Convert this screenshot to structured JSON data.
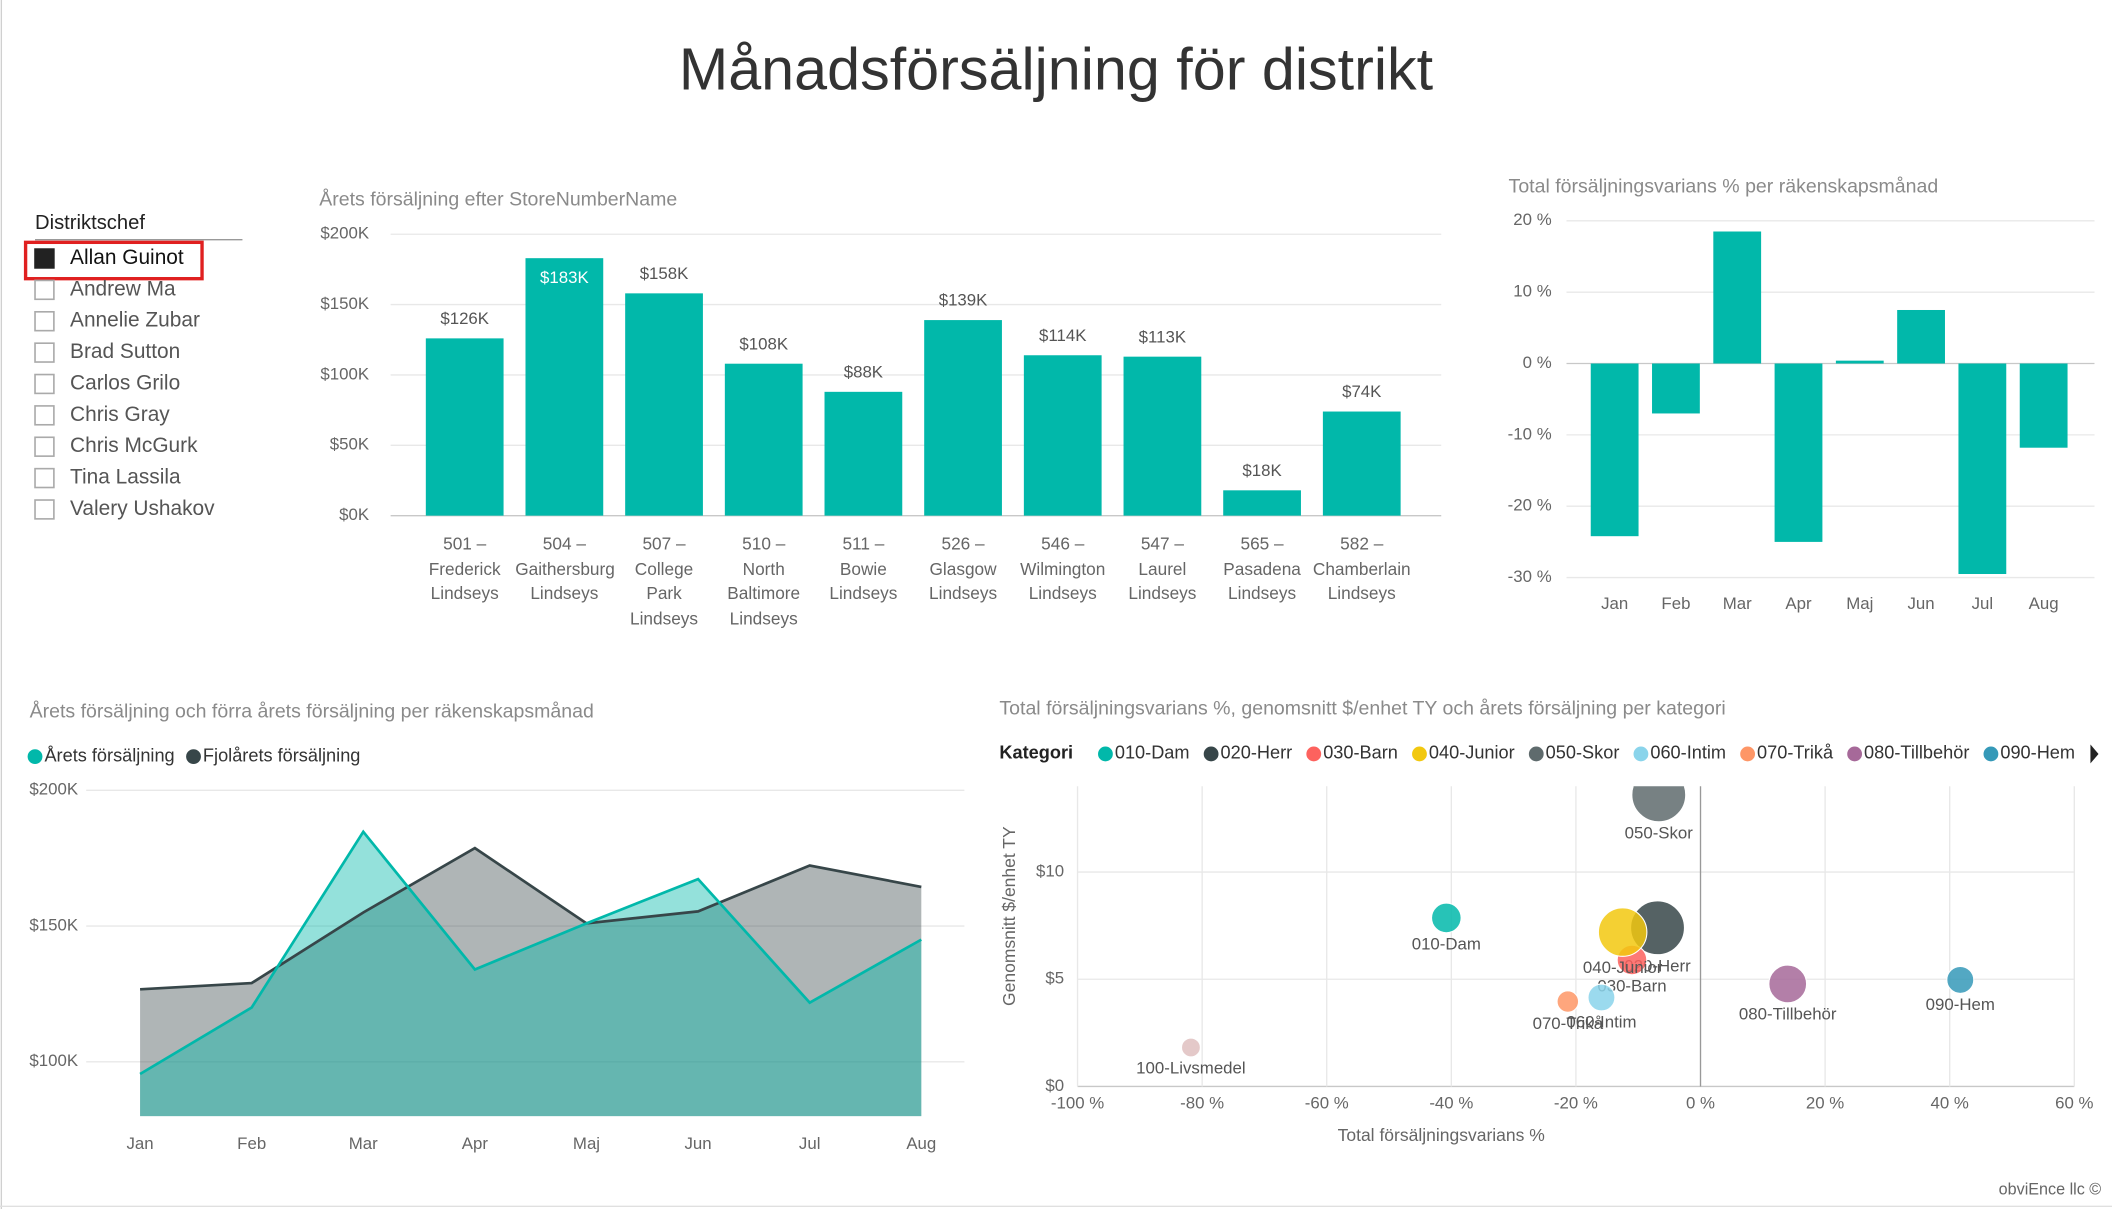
{
  "title": "Månadsförsäljning för distrikt",
  "slicer": {
    "title": "Distriktschef",
    "items": [
      {
        "label": "Allan Guinot",
        "checked": true
      },
      {
        "label": "Andrew Ma",
        "checked": false
      },
      {
        "label": "Annelie Zubar",
        "checked": false
      },
      {
        "label": "Brad Sutton",
        "checked": false
      },
      {
        "label": "Carlos Grilo",
        "checked": false
      },
      {
        "label": "Chris Gray",
        "checked": false
      },
      {
        "label": "Chris McGurk",
        "checked": false
      },
      {
        "label": "Tina Lassila",
        "checked": false
      },
      {
        "label": "Valery Ushakov",
        "checked": false
      }
    ]
  },
  "footer": "obviEnce llc ©",
  "chart_data": [
    {
      "type": "bar",
      "title": "Årets försäljning efter StoreNumberName",
      "categories": [
        "501 – Frederick Lindseys",
        "504 – Gaithersburg Lindseys",
        "507 – College Park Lindseys",
        "510 – North Baltimore Lindseys",
        "511 – Bowie Lindseys",
        "526 – Glasgow Lindseys",
        "546 – Wilmington Lindseys",
        "547 – Laurel Lindseys",
        "565 – Pasadena Lindseys",
        "582 – Chamberlain Lindseys"
      ],
      "values": [
        126000,
        183000,
        158000,
        108000,
        88000,
        139000,
        114000,
        113000,
        18000,
        74000
      ],
      "value_labels": [
        "$126K",
        "$183K",
        "$158K",
        "$108K",
        "$88K",
        "$139K",
        "$114K",
        "$113K",
        "$18K",
        "$74K"
      ],
      "color": "#01B8AA",
      "ylim": [
        0,
        200000
      ],
      "yticks": [
        {
          "value": 0,
          "label": "$0K"
        },
        {
          "value": 50000,
          "label": "$50K"
        },
        {
          "value": 100000,
          "label": "$100K"
        },
        {
          "value": 150000,
          "label": "$150K"
        },
        {
          "value": 200000,
          "label": "$200K"
        }
      ],
      "grid": true
    },
    {
      "type": "bar",
      "title": "Total försäljningsvarians % per räkenskapsmånad",
      "categories": [
        "Jan",
        "Feb",
        "Mar",
        "Apr",
        "Maj",
        "Jun",
        "Jul",
        "Aug"
      ],
      "values": [
        -24.2,
        -7,
        18.5,
        -25,
        0.4,
        7.5,
        -29.5,
        -11.8
      ],
      "color": "#01B8AA",
      "ylim": [
        -30,
        20
      ],
      "yticks": [
        {
          "value": -30,
          "label": "-30 %"
        },
        {
          "value": -20,
          "label": "-20 %"
        },
        {
          "value": -10,
          "label": "-10 %"
        },
        {
          "value": 0,
          "label": "0 %"
        },
        {
          "value": 10,
          "label": "10 %"
        },
        {
          "value": 20,
          "label": "20 %"
        }
      ],
      "grid": true
    },
    {
      "type": "area",
      "title": "Årets försäljning och förra årets försäljning per räkenskapsmånad",
      "categories": [
        "Jan",
        "Feb",
        "Mar",
        "Apr",
        "Maj",
        "Jun",
        "Jul",
        "Aug"
      ],
      "series": [
        {
          "name": "Årets försäljning",
          "color": "#01B8AA",
          "values": [
            95500,
            120000,
            184700,
            134000,
            151000,
            167300,
            121800,
            145000
          ]
        },
        {
          "name": "Fjolårets försäljning",
          "color": "#374649",
          "values": [
            126700,
            129000,
            155000,
            178700,
            151000,
            155400,
            172300,
            164400
          ]
        }
      ],
      "ylim": [
        80000,
        200000
      ],
      "yticks": [
        {
          "value": 100000,
          "label": "$100K"
        },
        {
          "value": 150000,
          "label": "$150K"
        },
        {
          "value": 200000,
          "label": "$200K"
        }
      ],
      "grid": true
    },
    {
      "type": "scatter",
      "title": "Total försäljningsvarians %, genomsnitt $/enhet TY och årets försäljning per kategori",
      "legend_title": "Kategori",
      "x_label": "Total försäljningsvarians %",
      "y_label": "Genomsnitt $/enhet TY",
      "series": [
        {
          "name": "010-Dam",
          "color": "#01B8AA",
          "x": [
            -40.8
          ],
          "values": [
            7.86
          ],
          "size": [
            121
          ]
        },
        {
          "name": "020-Herr",
          "color": "#374649",
          "x": [
            -6.9
          ],
          "values": [
            7.4
          ],
          "size": [
            400
          ]
        },
        {
          "name": "030-Barn",
          "color": "#FD625E",
          "x": [
            -11
          ],
          "values": [
            5.9
          ],
          "size": [
            121
          ]
        },
        {
          "name": "040-Junior",
          "color": "#F2C80F",
          "x": [
            -12.5
          ],
          "values": [
            7.2
          ],
          "size": [
            324
          ]
        },
        {
          "name": "050-Skor",
          "color": "#5F6B6D",
          "x": [
            -6.7
          ],
          "values": [
            13.6
          ],
          "size": [
            400
          ]
        },
        {
          "name": "060-Intim",
          "color": "#8AD4EB",
          "x": [
            -15.9
          ],
          "values": [
            4.15
          ],
          "size": [
            100
          ]
        },
        {
          "name": "070-Trikå",
          "color": "#FE9666",
          "x": [
            -21.3
          ],
          "values": [
            3.96
          ],
          "size": [
            64
          ]
        },
        {
          "name": "080-Tillbehör",
          "color": "#A66999",
          "x": [
            14
          ],
          "values": [
            4.78
          ],
          "size": [
            196
          ]
        },
        {
          "name": "090-Hem",
          "color": "#3599B8",
          "x": [
            41.7
          ],
          "values": [
            4.97
          ],
          "size": [
            100
          ]
        },
        {
          "name": "100-Livsmedel",
          "color": "#DFBFBF",
          "x": [
            -81.8
          ],
          "values": [
            1.82
          ],
          "size": [
            49
          ]
        }
      ],
      "xlim": [
        -100,
        60
      ],
      "xticks": [
        {
          "value": -100,
          "label": "-100 %"
        },
        {
          "value": -80,
          "label": "-80 %"
        },
        {
          "value": -60,
          "label": "-60 %"
        },
        {
          "value": -40,
          "label": "-40 %"
        },
        {
          "value": -20,
          "label": "-20 %"
        },
        {
          "value": 0,
          "label": "0 %"
        },
        {
          "value": 20,
          "label": "20 %"
        },
        {
          "value": 40,
          "label": "40 %"
        },
        {
          "value": 60,
          "label": "60 %"
        }
      ],
      "ylim": [
        0,
        14
      ],
      "yticks": [
        {
          "value": 0,
          "label": "$0"
        },
        {
          "value": 5,
          "label": "$5"
        },
        {
          "value": 10,
          "label": "$10"
        }
      ],
      "grid": true
    }
  ]
}
